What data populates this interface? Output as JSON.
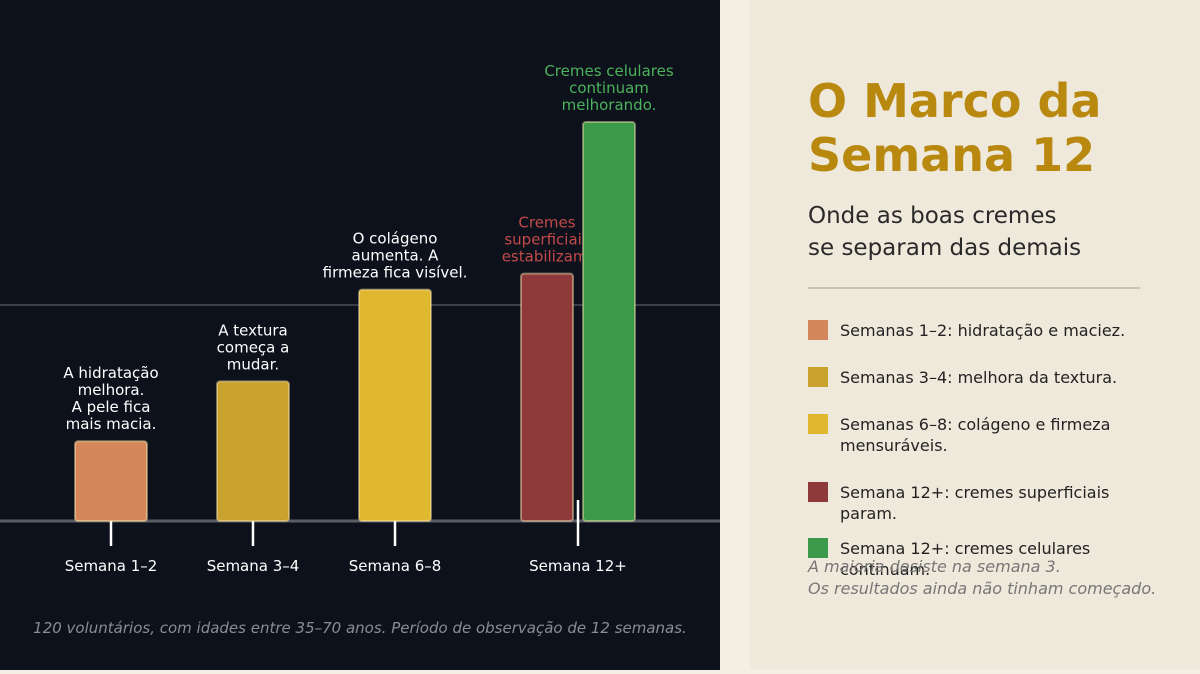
{
  "chart_data": {
    "type": "bar",
    "title": [
      "O Marco da",
      "Semana 12"
    ],
    "subtitle": [
      "Onde as boas cremes",
      "se separam das demais"
    ],
    "categories": [
      "Semana 1–2",
      "Semana 3–4",
      "Semana 6–8",
      "Semana 12+"
    ],
    "series": [
      {
        "name": "Semanas 1–2: hidratação e maciez.",
        "color": "#d4875a",
        "label_color": "#ffffff",
        "values": [
          20,
          null,
          null,
          null
        ],
        "annotation": [
          "A hidratação",
          "melhora.",
          "A pele fica",
          "mais macia."
        ]
      },
      {
        "name": "Semanas 3–4: melhora da textura.",
        "color": "#c9a12e",
        "label_color": "#ffffff",
        "values": [
          null,
          35,
          null,
          null
        ],
        "annotation": [
          "A textura",
          "começa a",
          "mudar."
        ]
      },
      {
        "name": "Semanas 6–8: colágeno e firmeza mensuráveis.",
        "color": "#e0b830",
        "label_color": "#ffffff",
        "values": [
          null,
          null,
          58,
          null
        ],
        "annotation": [
          "O colágeno",
          "aumenta. A",
          "firmeza fica visível."
        ]
      },
      {
        "name": "Semana 12+: cremes superficiais param.",
        "color": "#8e3a3a",
        "label_color": "#c24a48",
        "values": [
          null,
          null,
          null,
          62
        ],
        "annotation": [
          "Cremes",
          "superficiais",
          "estabilizam."
        ]
      },
      {
        "name": "Semana 12+: cremes celulares continuam.",
        "color": "#3a9a4a",
        "label_color": "#4cb35a",
        "values": [
          null,
          null,
          null,
          100
        ],
        "annotation": [
          "Cremes celulares",
          "continuam",
          "melhorando."
        ]
      }
    ],
    "footnote": "120 voluntários, com idades entre 35–70 anos. Período de observação de 12 semanas.",
    "note": [
      "A maioria desiste na semana 3.",
      "Os resultados ainda não tinham começado."
    ]
  }
}
